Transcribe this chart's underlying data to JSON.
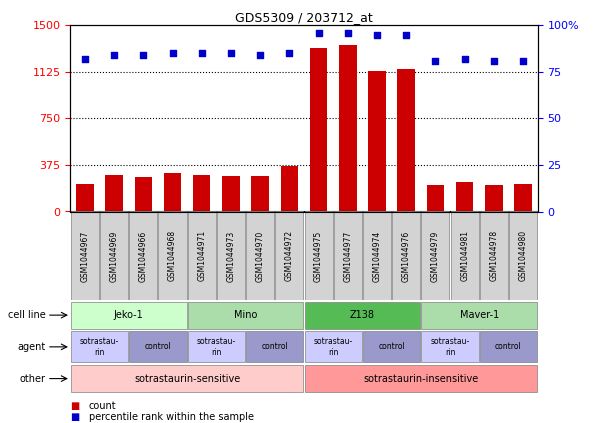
{
  "title": "GDS5309 / 203712_at",
  "samples": [
    "GSM1044967",
    "GSM1044969",
    "GSM1044966",
    "GSM1044968",
    "GSM1044971",
    "GSM1044973",
    "GSM1044970",
    "GSM1044972",
    "GSM1044975",
    "GSM1044977",
    "GSM1044974",
    "GSM1044976",
    "GSM1044979",
    "GSM1044981",
    "GSM1044978",
    "GSM1044980"
  ],
  "counts": [
    220,
    295,
    280,
    310,
    295,
    285,
    285,
    370,
    1320,
    1340,
    1130,
    1145,
    215,
    235,
    210,
    225
  ],
  "percentile_ranks": [
    82,
    84,
    84,
    85,
    85,
    85,
    84,
    85,
    96,
    96,
    95,
    95,
    81,
    82,
    81,
    81
  ],
  "ylim_left": [
    0,
    1500
  ],
  "ylim_right": [
    0,
    100
  ],
  "yticks_left": [
    0,
    375,
    750,
    1125,
    1500
  ],
  "yticks_right": [
    0,
    25,
    50,
    75,
    100
  ],
  "ytick_labels_right": [
    "0",
    "25",
    "50",
    "75",
    "100%"
  ],
  "bar_color": "#cc0000",
  "dot_color": "#0000cc",
  "cell_lines": [
    {
      "label": "Jeko-1",
      "start": 0,
      "end": 4,
      "color": "#ccffcc"
    },
    {
      "label": "Mino",
      "start": 4,
      "end": 8,
      "color": "#aaddaa"
    },
    {
      "label": "Z138",
      "start": 8,
      "end": 12,
      "color": "#55bb55"
    },
    {
      "label": "Maver-1",
      "start": 12,
      "end": 16,
      "color": "#aaddaa"
    }
  ],
  "agents": [
    {
      "label": "sotrastaurin",
      "start": 0,
      "end": 2,
      "color": "#ccccff"
    },
    {
      "label": "control",
      "start": 2,
      "end": 4,
      "color": "#9999cc"
    },
    {
      "label": "sotrastaurin",
      "start": 4,
      "end": 6,
      "color": "#ccccff"
    },
    {
      "label": "control",
      "start": 6,
      "end": 8,
      "color": "#9999cc"
    },
    {
      "label": "sotrastaurin",
      "start": 8,
      "end": 10,
      "color": "#ccccff"
    },
    {
      "label": "control",
      "start": 10,
      "end": 12,
      "color": "#9999cc"
    },
    {
      "label": "sotrastaurin",
      "start": 12,
      "end": 14,
      "color": "#ccccff"
    },
    {
      "label": "control",
      "start": 14,
      "end": 16,
      "color": "#9999cc"
    }
  ],
  "others": [
    {
      "label": "sotrastaurin-sensitive",
      "start": 0,
      "end": 8,
      "color": "#ffcccc"
    },
    {
      "label": "sotrastaurin-insensitive",
      "start": 8,
      "end": 16,
      "color": "#ff9999"
    }
  ],
  "legend_items": [
    {
      "color": "#cc0000",
      "label": "count"
    },
    {
      "color": "#0000cc",
      "label": "percentile rank within the sample"
    }
  ],
  "bg_color": "#ffffff",
  "grid_color": "#000000",
  "grid_linestyle": "dotted",
  "grid_linewidth": 0.8
}
